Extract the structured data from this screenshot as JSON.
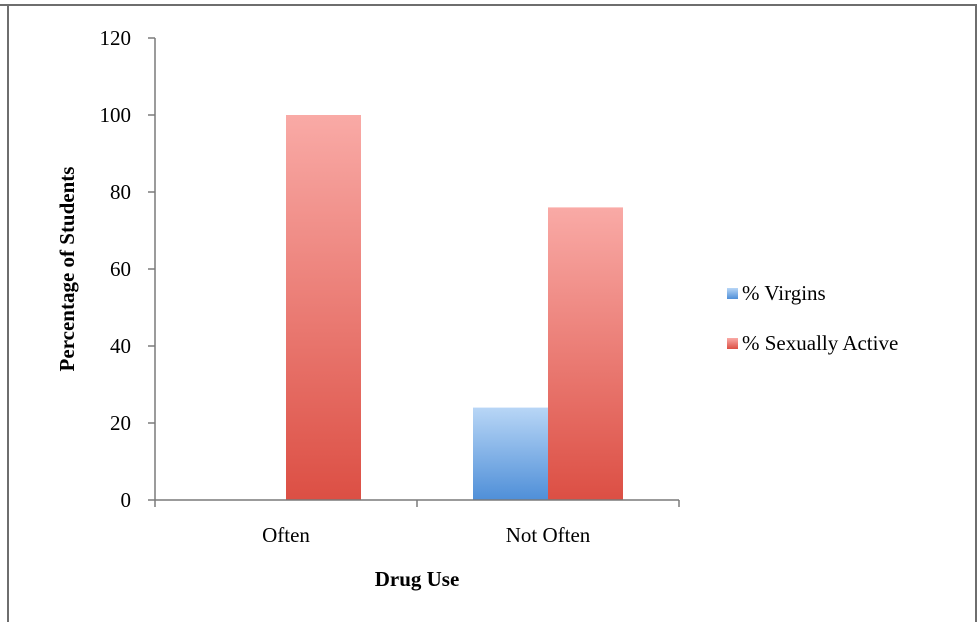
{
  "chart_data": {
    "type": "bar",
    "title": "",
    "xlabel": "Drug Use",
    "ylabel": "Percentage of Students",
    "categories": [
      "Often",
      "Not Often"
    ],
    "series": [
      {
        "name": "% Virgins",
        "values": [
          0,
          24
        ],
        "color": "#4f8fd8"
      },
      {
        "name": "% Sexually Active",
        "values": [
          100,
          76
        ],
        "color": "#e0564c"
      }
    ],
    "ylim": [
      0,
      120
    ],
    "yticks": [
      "0",
      "20",
      "40",
      "60",
      "80",
      "100",
      "120"
    ],
    "grid": false,
    "legend": "right"
  }
}
